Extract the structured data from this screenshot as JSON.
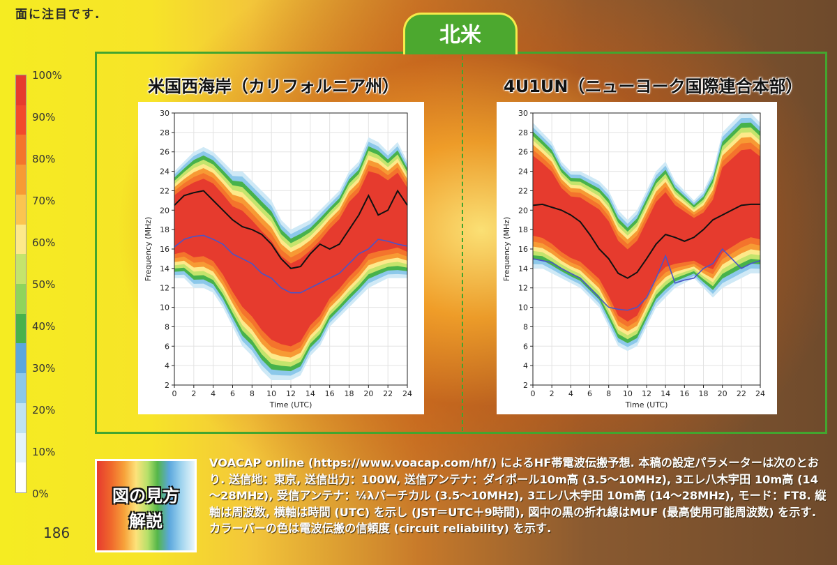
{
  "page": {
    "top_text": "面に注目です.",
    "page_number": "186",
    "region_tab": "北米"
  },
  "colorbar": {
    "labels": [
      "100%",
      "90%",
      "80%",
      "70%",
      "60%",
      "50%",
      "40%",
      "30%",
      "20%",
      "10%",
      "0%"
    ],
    "colors": [
      "#e63b2e",
      "#f2492c",
      "#f4742c",
      "#f79a34",
      "#fbc450",
      "#fde98a",
      "#c4e46c",
      "#8fd45c",
      "#47b24b",
      "#5ba7dd",
      "#8cc8ea",
      "#bfe3f3",
      "#e4f4fa",
      "#ffffff"
    ]
  },
  "legend_card": {
    "line1": "図の見方",
    "line2": "解説"
  },
  "description": "VOACAP online (https://www.voacap.com/hf/) によるHF帯電波伝搬予想. 本稿の設定パラメーターは次のとおり. 送信地：東京, 送信出力：100W, 送信アンテナ：ダイポール10m高 (3.5～10MHz), 3エレ八木宇田 10m高 (14～28MHz), 受信アンテナ：¼λバーチカル (3.5～10MHz), 3エレ八木宇田 10m高 (14～28MHz), モード：FT8. 縦軸は周波数, 横軸は時間 (UTC) を示し (JST＝UTC＋9時間), 図中の黒の折れ線はMUF (最高使用可能周波数) を示す. カラーバーの色は電波伝搬の信頼度 (circuit reliability) を示す.",
  "chart_data": [
    {
      "type": "heatmap",
      "title": "米国西海岸（カリフォルニア州）",
      "xlabel": "Time (UTC)",
      "ylabel": "Frequency (MHz)",
      "xlim": [
        0,
        24
      ],
      "ylim": [
        2,
        30
      ],
      "xticks": [
        0,
        2,
        4,
        6,
        8,
        10,
        12,
        14,
        16,
        18,
        20,
        22,
        24
      ],
      "yticks": [
        2,
        4,
        6,
        8,
        10,
        12,
        14,
        16,
        18,
        20,
        22,
        24,
        26,
        28,
        30
      ],
      "grid": true,
      "x": [
        0,
        1,
        2,
        3,
        4,
        5,
        6,
        7,
        8,
        9,
        10,
        11,
        12,
        13,
        14,
        15,
        16,
        17,
        18,
        19,
        20,
        21,
        22,
        23,
        24
      ],
      "reliability_upper_edge": [
        24,
        25,
        26,
        26.5,
        26,
        25,
        24,
        24,
        23,
        22,
        21,
        19,
        18,
        18.5,
        19,
        20,
        21,
        22,
        24,
        25,
        27.5,
        27,
        26,
        27,
        25
      ],
      "reliability_lower_edge": [
        13,
        13,
        12,
        12,
        11.5,
        10,
        8,
        6,
        5,
        3.5,
        2.5,
        2.5,
        2.5,
        3,
        5,
        6,
        8,
        9,
        10,
        11,
        12,
        12.5,
        13,
        13,
        13
      ],
      "series": [
        {
          "name": "MUF",
          "color": "#111111",
          "values": [
            20.5,
            21.5,
            21.8,
            22,
            21,
            20,
            19,
            18.3,
            18,
            17.5,
            16.5,
            15,
            14,
            14.2,
            15.5,
            16.5,
            16,
            16.5,
            18,
            19.5,
            21.5,
            19.5,
            20,
            22,
            20.5
          ]
        },
        {
          "color": "#4a55c8",
          "values": [
            16.2,
            17,
            17.3,
            17.4,
            17,
            16.5,
            15.5,
            15,
            14.5,
            13.5,
            13,
            12,
            11.5,
            11.5,
            12,
            12.5,
            13,
            13.5,
            14.5,
            15.5,
            16,
            17,
            16.8,
            16.5,
            16.3
          ]
        }
      ]
    },
    {
      "type": "heatmap",
      "title": "4U1UN（ニューヨーク国際連合本部）",
      "xlabel": "Time (UTC)",
      "ylabel": "Frequency (MHz)",
      "xlim": [
        0,
        24
      ],
      "ylim": [
        2,
        30
      ],
      "xticks": [
        0,
        2,
        4,
        6,
        8,
        10,
        12,
        14,
        16,
        18,
        20,
        22,
        24
      ],
      "yticks": [
        2,
        4,
        6,
        8,
        10,
        12,
        14,
        16,
        18,
        20,
        22,
        24,
        26,
        28,
        30
      ],
      "grid": true,
      "x": [
        0,
        1,
        2,
        3,
        4,
        5,
        6,
        7,
        8,
        9,
        10,
        11,
        12,
        13,
        14,
        15,
        16,
        17,
        18,
        19,
        20,
        21,
        22,
        23,
        24
      ],
      "reliability_upper_edge": [
        29,
        28,
        27,
        25,
        24,
        24,
        23.5,
        23,
        22,
        20,
        19,
        20,
        22,
        24,
        25,
        23,
        22,
        21,
        22,
        24,
        28,
        29,
        30,
        30,
        29
      ],
      "reliability_lower_edge": [
        14,
        14,
        13.5,
        13,
        12.5,
        12,
        11,
        10,
        8,
        6,
        5.5,
        6,
        8,
        10,
        11,
        12,
        12.5,
        13,
        12,
        11,
        12,
        12.5,
        13,
        13.5,
        13.5
      ],
      "series": [
        {
          "name": "MUF",
          "color": "#111111",
          "values": [
            20.5,
            20.6,
            20.3,
            20,
            19.5,
            18.8,
            17.5,
            16,
            15,
            13.5,
            13,
            13.6,
            15,
            16.5,
            17.5,
            17.2,
            16.8,
            17.2,
            18,
            19,
            19.5,
            20,
            20.5,
            20.6,
            20.6
          ]
        },
        {
          "color": "#4a55c8",
          "values": [
            15,
            14.8,
            14.6,
            14,
            13.5,
            13,
            12,
            11,
            10,
            9.8,
            9.7,
            10,
            11,
            13,
            15.3,
            12.5,
            12.8,
            13,
            14,
            14.5,
            16,
            15,
            14,
            14.5,
            14.8
          ]
        }
      ]
    }
  ]
}
